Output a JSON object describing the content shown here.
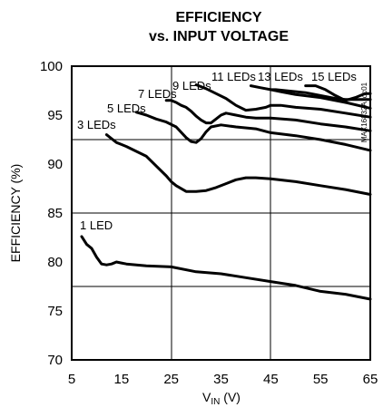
{
  "chart_data": {
    "type": "line",
    "title": "EFFICIENCY",
    "subtitle": "vs. INPUT VOLTAGE",
    "ylabel": "EFFICIENCY (%)",
    "xlabel_main": "V",
    "xlabel_sub": "IN",
    "xlabel_unit": " (V)",
    "code": "MAX16832A toc01",
    "xlim": [
      5,
      65
    ],
    "ylim": [
      70,
      100
    ],
    "x_ticks": [
      "5",
      "15",
      "25",
      "35",
      "45",
      "55",
      "65"
    ],
    "y_ticks": [
      "70",
      "75",
      "80",
      "85",
      "90",
      "95",
      "100"
    ],
    "grid": true,
    "series": [
      {
        "name": "1 LED",
        "x": [
          7,
          8,
          9,
          10,
          11,
          12,
          13,
          14,
          15,
          16,
          18,
          20,
          25,
          30,
          35,
          40,
          45,
          50,
          55,
          60,
          65
        ],
        "y": [
          82.6,
          81.8,
          81.4,
          80.5,
          79.8,
          79.7,
          79.8,
          80.0,
          79.9,
          79.8,
          79.7,
          79.6,
          79.5,
          79.0,
          78.8,
          78.4,
          78.0,
          77.6,
          77.0,
          76.7,
          76.2
        ]
      },
      {
        "name": "3 LEDs",
        "x": [
          12,
          13,
          14,
          15,
          16,
          18,
          20,
          22,
          24,
          25,
          26,
          28,
          30,
          32,
          34,
          36,
          38,
          40,
          42,
          45,
          50,
          55,
          60,
          65
        ],
        "y": [
          93.0,
          92.6,
          92.2,
          92.0,
          91.8,
          91.3,
          90.8,
          89.8,
          88.8,
          88.2,
          87.8,
          87.2,
          87.2,
          87.3,
          87.6,
          88.0,
          88.4,
          88.6,
          88.6,
          88.5,
          88.2,
          87.8,
          87.4,
          86.9
        ]
      },
      {
        "name": "5 LEDs",
        "x": [
          18,
          20,
          22,
          24,
          26,
          28,
          29,
          30,
          31,
          32,
          33,
          35,
          38,
          42,
          45,
          50,
          55,
          60,
          65
        ],
        "y": [
          95.3,
          95.0,
          94.6,
          94.3,
          93.8,
          92.7,
          92.3,
          92.2,
          92.6,
          93.3,
          93.8,
          94.0,
          93.8,
          93.6,
          93.2,
          92.9,
          92.5,
          92.0,
          91.4
        ]
      },
      {
        "name": "7 LEDs",
        "x": [
          24,
          25,
          26,
          27,
          28,
          29,
          30,
          31,
          32,
          33,
          34,
          35,
          36,
          38,
          40,
          42,
          45,
          50,
          55,
          60,
          65
        ],
        "y": [
          96.5,
          96.5,
          96.3,
          96.0,
          95.8,
          95.4,
          94.9,
          94.5,
          94.2,
          94.2,
          94.6,
          95.0,
          95.2,
          95.0,
          94.8,
          94.7,
          94.7,
          94.5,
          94.1,
          93.8,
          93.4
        ]
      },
      {
        "name": "9 LEDs",
        "x": [
          30,
          32,
          34,
          36,
          38,
          40,
          42,
          44,
          45,
          47,
          50,
          55,
          60,
          65
        ],
        "y": [
          98.1,
          97.7,
          97.2,
          96.7,
          96.0,
          95.5,
          95.6,
          95.8,
          96.0,
          96.0,
          95.8,
          95.6,
          95.2,
          94.8
        ]
      },
      {
        "name": "11 LEDs",
        "x": [
          41,
          43,
          45,
          47,
          50,
          55,
          60,
          65
        ],
        "y": [
          98.0,
          97.8,
          97.6,
          97.4,
          97.1,
          96.8,
          96.3,
          95.7
        ]
      },
      {
        "name": "13 LEDs",
        "x": [
          45,
          46,
          48,
          50,
          52,
          54,
          56,
          58,
          60,
          62,
          65
        ],
        "y": [
          97.6,
          97.6,
          97.5,
          97.4,
          97.3,
          97.1,
          96.9,
          96.7,
          96.6,
          96.6,
          96.6
        ]
      },
      {
        "name": "15 LEDs",
        "x": [
          52,
          54,
          56,
          58,
          60,
          62,
          63,
          64,
          65
        ],
        "y": [
          98.0,
          98.0,
          97.6,
          97.0,
          96.5,
          96.8,
          97.0,
          97.2,
          97.2
        ]
      }
    ]
  }
}
